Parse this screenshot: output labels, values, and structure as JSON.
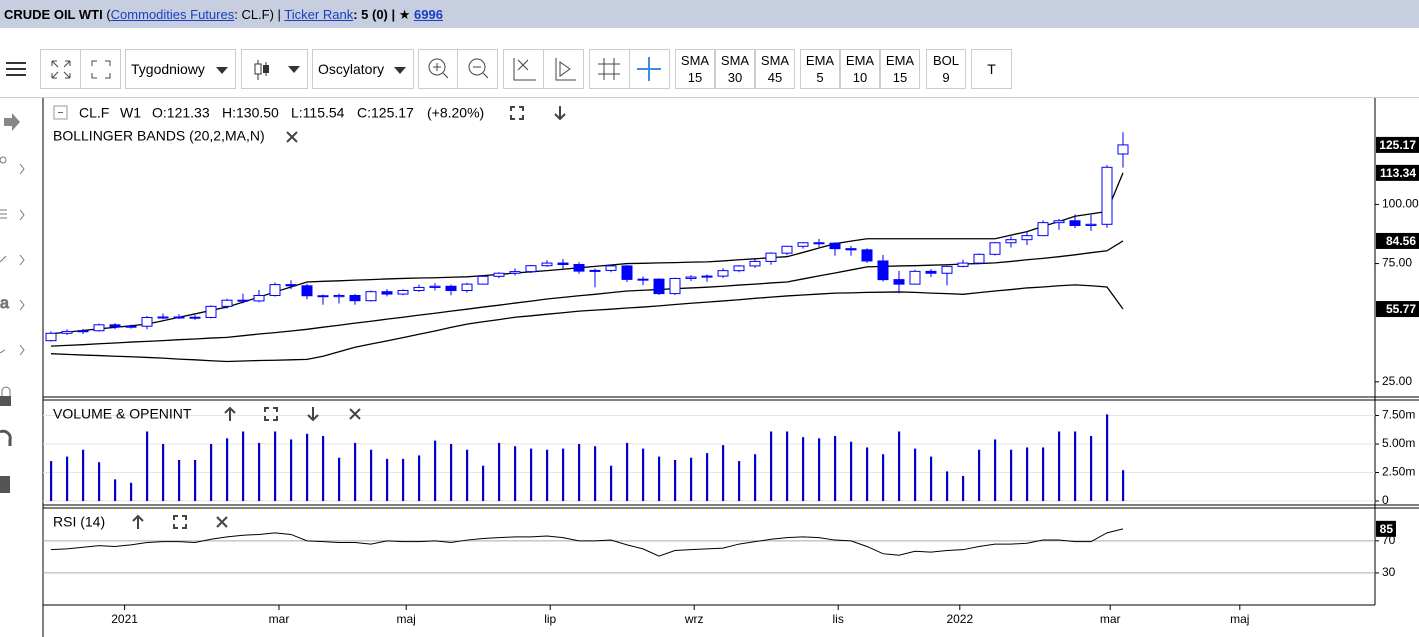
{
  "header": {
    "title": "CRUDE OIL WTI",
    "open": "(",
    "market": "Commodities Futures",
    "symbol": ": CL.F) |",
    "rank_label": "Ticker Rank",
    "rank": ": 5 (0) |",
    "star": "★",
    "favorites": "6996"
  },
  "toolbar": {
    "interval": "Tygodniowy",
    "indicators": "Oscylatory",
    "averages": [
      {
        "name": "SMA",
        "period": "15"
      },
      {
        "name": "SMA",
        "period": "30"
      },
      {
        "name": "SMA",
        "period": "45"
      },
      {
        "name": "EMA",
        "period": "5"
      },
      {
        "name": "EMA",
        "period": "10"
      },
      {
        "name": "EMA",
        "period": "15"
      },
      {
        "name": "BOL",
        "period": "9"
      }
    ],
    "text_tool": "T"
  },
  "chart_data": [
    {
      "type": "candlestick",
      "symbol": "CL.F",
      "interval": "W1",
      "ohlc_labels": [
        "O:121.33",
        "H:130.50",
        "L:115.54",
        "C:125.17",
        "(+8.20%)"
      ],
      "title": "BOLLINGER BANDS (20,2,MA,N)",
      "xlim": [
        -0.5,
        82.75
      ],
      "ylim": [
        19,
        145
      ],
      "yticks": [
        {
          "value": 25,
          "label": "25.00"
        },
        {
          "value": 75,
          "label": "75.00"
        },
        {
          "value": 100,
          "label": "100.00"
        }
      ],
      "up_color": "#ffffff",
      "down_color": "#0000ff",
      "edge_color": "#0000ff",
      "open": [
        42.4,
        45.5,
        46.3,
        46.6,
        49.1,
        48.2,
        48.5,
        52.2,
        52.4,
        52.3,
        52.2,
        56.9,
        59.5,
        59.2,
        61.5,
        66.1,
        65.6,
        61.4,
        61.0,
        61.5,
        59.3,
        63.1,
        62.1,
        63.6,
        64.9,
        65.4,
        63.6,
        66.3,
        69.6,
        70.9,
        71.6,
        74.1,
        75.2,
        74.6,
        71.8,
        72.1,
        74.0,
        68.3,
        68.4,
        62.3,
        68.7,
        69.3,
        69.7,
        72.0,
        74.0,
        75.9,
        79.4,
        82.3,
        83.8,
        83.6,
        81.3,
        80.8,
        76.1,
        68.2,
        66.3,
        71.7,
        70.9,
        73.8,
        75.2,
        78.9,
        83.8,
        85.1,
        86.8,
        92.3,
        93.1,
        91.1,
        91.6,
        121.33
      ],
      "high": [
        46.3,
        47.2,
        47.4,
        49.6,
        49.8,
        49.2,
        52.8,
        53.9,
        53.6,
        53.2,
        57.3,
        60.1,
        62.3,
        63.8,
        67.0,
        67.9,
        66.4,
        61.9,
        62.3,
        62.1,
        63.6,
        64.2,
        64.2,
        66.1,
        66.7,
        66.1,
        66.9,
        70.0,
        71.3,
        72.9,
        74.4,
        76.4,
        76.9,
        75.6,
        72.9,
        74.3,
        74.4,
        69.6,
        68.8,
        69.0,
        70.1,
        70.4,
        73.0,
        74.3,
        76.7,
        79.8,
        82.5,
        84.0,
        85.4,
        84.0,
        82.4,
        81.4,
        78.6,
        71.9,
        72.4,
        72.7,
        74.1,
        76.6,
        79.3,
        84.0,
        86.5,
        88.8,
        93.2,
        93.9,
        95.8,
        95.6,
        116.6,
        130.5
      ],
      "low": [
        42.0,
        44.8,
        45.2,
        46.2,
        47.3,
        47.5,
        47.2,
        51.5,
        51.6,
        51.2,
        51.8,
        56.0,
        58.2,
        58.6,
        61.0,
        64.2,
        59.9,
        57.6,
        58.1,
        57.6,
        58.9,
        61.1,
        61.6,
        63.0,
        63.6,
        61.6,
        62.7,
        66.1,
        68.8,
        70.0,
        71.0,
        73.6,
        72.8,
        70.7,
        65.0,
        71.3,
        67.2,
        65.9,
        61.7,
        61.7,
        67.6,
        67.3,
        68.9,
        71.3,
        73.2,
        74.5,
        78.5,
        81.3,
        82.0,
        78.3,
        78.3,
        75.3,
        67.4,
        62.4,
        66.1,
        69.3,
        65.8,
        73.4,
        74.9,
        78.4,
        81.8,
        82.8,
        86.6,
        89.3,
        90.0,
        88.8,
        90.1,
        115.54
      ],
      "close": [
        45.5,
        46.3,
        46.6,
        49.1,
        48.2,
        48.5,
        52.2,
        52.4,
        52.3,
        52.2,
        56.9,
        59.5,
        59.2,
        61.5,
        66.1,
        65.6,
        61.4,
        61.0,
        61.5,
        59.3,
        63.1,
        62.1,
        63.6,
        64.9,
        65.4,
        63.6,
        66.3,
        69.6,
        70.9,
        71.6,
        74.1,
        75.2,
        74.6,
        71.8,
        72.1,
        74.0,
        68.3,
        68.4,
        62.3,
        68.7,
        69.3,
        69.7,
        72.0,
        74.0,
        75.9,
        79.4,
        82.3,
        83.8,
        83.6,
        81.3,
        80.8,
        76.1,
        68.2,
        66.3,
        71.7,
        70.9,
        73.8,
        75.2,
        78.9,
        83.8,
        85.1,
        86.8,
        92.3,
        93.1,
        91.1,
        91.6,
        115.7,
        125.17
      ],
      "bands": {
        "color": "#000000",
        "upper": [
          45.3,
          46.0,
          46.7,
          47.4,
          48.0,
          48.7,
          49.4,
          50.8,
          52.3,
          53.7,
          55.2,
          56.6,
          58.7,
          60.8,
          63.0,
          65.1,
          67.2,
          67.5,
          67.7,
          68.0,
          68.2,
          68.5,
          68.7,
          68.9,
          69.0,
          69.2,
          69.4,
          69.9,
          70.4,
          71.0,
          71.5,
          72.0,
          72.6,
          73.2,
          73.8,
          74.4,
          75.0,
          75.1,
          75.3,
          75.4,
          75.6,
          75.7,
          76.1,
          76.6,
          77.0,
          77.5,
          77.9,
          79.7,
          81.6,
          83.4,
          84.5,
          85.5,
          85.5,
          85.5,
          85.5,
          85.5,
          85.5,
          85.5,
          85.5,
          85.5,
          87.0,
          88.5,
          90.7,
          92.8,
          95.0,
          96.0,
          97.0,
          113.34
        ],
        "middle": [
          40.1,
          40.4,
          40.7,
          41.1,
          41.4,
          41.8,
          42.1,
          42.4,
          42.8,
          43.1,
          43.5,
          43.8,
          44.5,
          45.2,
          45.8,
          46.5,
          47.2,
          48.1,
          48.9,
          49.8,
          50.6,
          51.5,
          52.3,
          53.2,
          54.0,
          54.9,
          55.7,
          56.6,
          57.4,
          58.3,
          59.1,
          60.0,
          60.7,
          61.4,
          62.0,
          62.7,
          63.4,
          63.7,
          64.0,
          64.4,
          64.7,
          65.0,
          65.4,
          65.9,
          66.3,
          66.8,
          67.2,
          68.5,
          69.8,
          71.0,
          72.3,
          73.6,
          73.8,
          74.0,
          74.1,
          74.3,
          74.5,
          74.8,
          75.0,
          75.3,
          75.9,
          76.6,
          77.2,
          77.9,
          78.7,
          79.6,
          80.4,
          84.56
        ],
        "lower": [
          36.9,
          36.6,
          36.3,
          36.1,
          35.8,
          35.6,
          35.3,
          35.0,
          34.6,
          34.3,
          33.9,
          33.6,
          33.8,
          34.0,
          34.1,
          34.3,
          34.5,
          35.8,
          37.7,
          39.6,
          41.0,
          42.3,
          43.7,
          45.1,
          46.5,
          48.0,
          49.4,
          50.4,
          51.3,
          52.3,
          52.9,
          53.6,
          54.2,
          54.9,
          55.3,
          55.7,
          56.2,
          56.6,
          57.1,
          57.7,
          58.2,
          58.7,
          59.2,
          59.7,
          60.3,
          60.8,
          61.3,
          61.7,
          62.1,
          62.5,
          62.6,
          62.8,
          62.9,
          63.0,
          62.8,
          62.5,
          62.3,
          62.0,
          62.7,
          63.4,
          64.0,
          64.7,
          65.1,
          65.6,
          66.0,
          65.6,
          65.1,
          55.77
        ]
      }
    },
    {
      "type": "bar",
      "title": "VOLUME & OPENINT",
      "xlim": [
        -0.5,
        82.75
      ],
      "ylim": [
        -0.35,
        8.6
      ],
      "yticks": [
        0,
        {
          "value": 2.5,
          "label": "2.50m"
        },
        {
          "value": 5,
          "label": "5.00m"
        },
        {
          "value": 7.5,
          "label": "7.50m"
        }
      ],
      "grid": true,
      "color": "#0000cc",
      "values": [
        3.5,
        3.9,
        4.5,
        3.4,
        1.9,
        1.6,
        6.1,
        5.0,
        3.6,
        3.6,
        5.0,
        5.5,
        6.1,
        5.1,
        6.1,
        5.4,
        5.9,
        5.7,
        3.8,
        5.1,
        4.5,
        3.7,
        3.7,
        4.0,
        5.3,
        5.0,
        4.5,
        3.1,
        5.1,
        4.8,
        4.6,
        4.5,
        4.6,
        5.0,
        4.8,
        3.1,
        5.1,
        4.6,
        3.9,
        3.6,
        3.8,
        4.2,
        4.9,
        3.5,
        4.1,
        6.1,
        6.1,
        5.6,
        5.5,
        5.7,
        5.2,
        4.7,
        4.1,
        6.1,
        4.6,
        3.9,
        2.6,
        2.2,
        4.5,
        5.4,
        4.5,
        4.7,
        4.7,
        6.1,
        6.1,
        5.7,
        7.6,
        2.7
      ]
    },
    {
      "type": "line",
      "title": "RSI (14)",
      "xlim": [
        -0.5,
        82.75
      ],
      "ylim": [
        -10,
        106
      ],
      "yticks": [
        30,
        70
      ],
      "grid": true,
      "color": "#000000",
      "xticks": [
        {
          "value": 4.6,
          "label": "2021"
        },
        {
          "value": 14.25,
          "label": "mar"
        },
        {
          "value": 22.2,
          "label": "maj"
        },
        {
          "value": 31.2,
          "label": "lip"
        },
        {
          "value": 40.2,
          "label": "wrz"
        },
        {
          "value": 49.2,
          "label": "lis"
        },
        {
          "value": 56.8,
          "label": "2022"
        },
        {
          "value": 66.2,
          "label": "mar"
        },
        {
          "value": 74.3,
          "label": "maj"
        }
      ],
      "values": [
        59,
        60,
        62,
        64,
        63,
        65,
        68,
        69,
        69,
        68,
        72,
        75,
        77,
        78,
        80,
        78,
        70,
        69,
        68,
        68,
        66,
        70,
        69,
        69,
        70,
        68,
        71,
        73,
        74,
        75,
        75,
        76,
        74,
        70,
        70,
        71,
        65,
        60,
        51,
        58,
        59,
        60,
        61,
        66,
        69,
        72,
        74,
        75,
        74,
        71,
        70,
        63,
        54,
        52,
        57,
        56,
        58,
        59,
        63,
        66,
        66,
        67,
        71,
        71,
        69,
        69,
        80,
        85
      ]
    }
  ]
}
